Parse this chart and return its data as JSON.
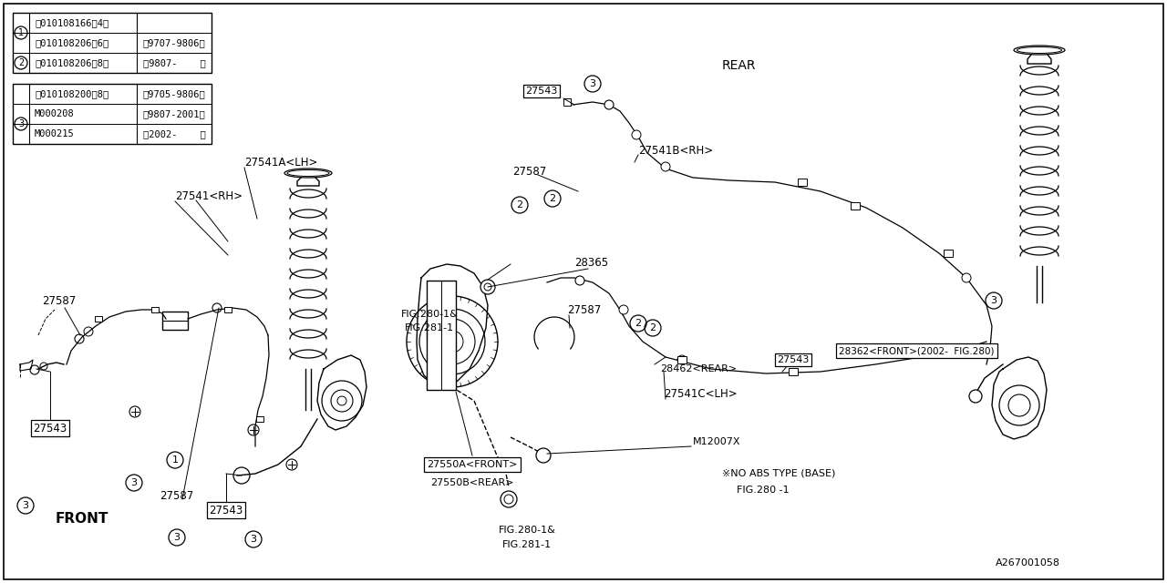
{
  "bg_color": "#ffffff",
  "fig_width": 12.8,
  "fig_height": 6.4,
  "box1_rows": [
    [
      "1",
      "Ⓑ010108166（4）",
      ""
    ],
    [
      "2",
      "Ⓑ010108206（6）",
      "（9707-9806）"
    ],
    [
      "2",
      "Ⓑ010108206（8）",
      "（9807-    ）"
    ]
  ],
  "box2_rows": [
    [
      "3",
      "Ⓑ010108200（8）",
      "（9705-9806）"
    ],
    [
      "3",
      "M000208",
      "（9807-2001）"
    ],
    [
      "3",
      "M000215",
      "）2002-    ）"
    ]
  ]
}
